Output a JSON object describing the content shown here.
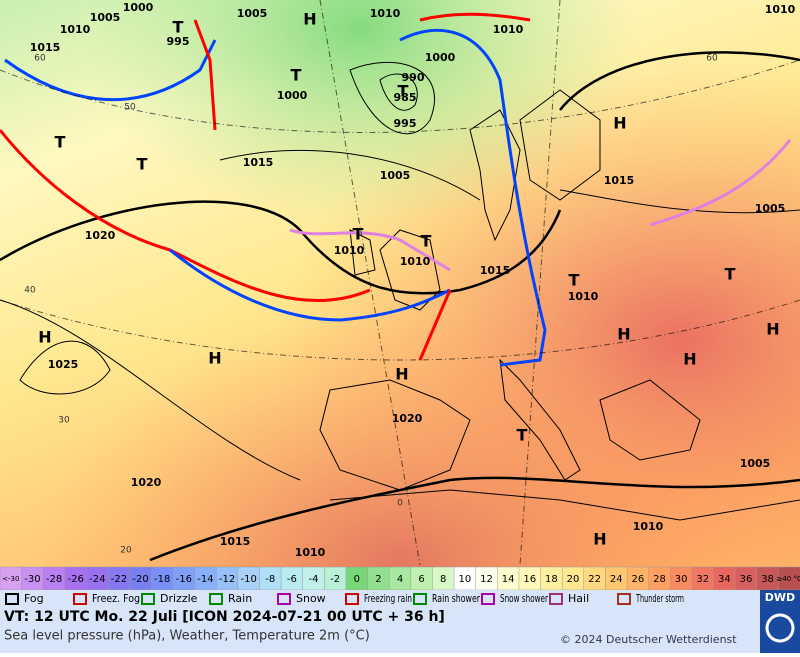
{
  "map": {
    "pressure_labels": [
      "1005",
      "1000",
      "1010",
      "1015",
      "995",
      "1005",
      "1010",
      "1010",
      "1000",
      "990",
      "985",
      "995",
      "1000",
      "1005",
      "1015",
      "1015",
      "1020",
      "1010",
      "1010",
      "1015",
      "1010",
      "1005",
      "1025",
      "1020",
      "1020",
      "1015",
      "1010",
      "1010",
      "1005",
      "1010"
    ],
    "systems": [
      "H",
      "T",
      "T",
      "T",
      "H",
      "T",
      "T",
      "T",
      "T",
      "T",
      "T",
      "H",
      "H",
      "H",
      "H",
      "H",
      "T",
      "H",
      "H"
    ],
    "grid_labels": [
      "60",
      "50",
      "40",
      "30",
      "20",
      "0",
      "60"
    ]
  },
  "scale": {
    "items": [
      {
        "label": "<-30",
        "color": "#d8a0f0"
      },
      {
        "label": "-30",
        "color": "#c890f0"
      },
      {
        "label": "-28",
        "color": "#b880f0"
      },
      {
        "label": "-26",
        "color": "#a870f0"
      },
      {
        "label": "-24",
        "color": "#9870f0"
      },
      {
        "label": "-22",
        "color": "#8878f0"
      },
      {
        "label": "-20",
        "color": "#7880f0"
      },
      {
        "label": "-18",
        "color": "#7890f8"
      },
      {
        "label": "-16",
        "color": "#80a0f8"
      },
      {
        "label": "-14",
        "color": "#88b0f8"
      },
      {
        "label": "-12",
        "color": "#98c0f8"
      },
      {
        "label": "-10",
        "color": "#a8d0f8"
      },
      {
        "label": "-8",
        "color": "#b0e0f8"
      },
      {
        "label": "-6",
        "color": "#b8ecf0"
      },
      {
        "label": "-4",
        "color": "#c0f0e8"
      },
      {
        "label": "-2",
        "color": "#b8f0d8"
      },
      {
        "label": "0",
        "color": "#78d878"
      },
      {
        "label": "2",
        "color": "#90e090"
      },
      {
        "label": "4",
        "color": "#a8e8a0"
      },
      {
        "label": "6",
        "color": "#c0f0b0"
      },
      {
        "label": "8",
        "color": "#d8f8c8"
      },
      {
        "label": "10",
        "color": "#ffffff"
      },
      {
        "label": "12",
        "color": "#fffff0"
      },
      {
        "label": "14",
        "color": "#fffcd0"
      },
      {
        "label": "16",
        "color": "#fff8b8"
      },
      {
        "label": "18",
        "color": "#fff0a0"
      },
      {
        "label": "20",
        "color": "#ffe890"
      },
      {
        "label": "22",
        "color": "#ffd880"
      },
      {
        "label": "24",
        "color": "#ffc870"
      },
      {
        "label": "26",
        "color": "#ffb468"
      },
      {
        "label": "28",
        "color": "#ffa060"
      },
      {
        "label": "30",
        "color": "#f88c60"
      },
      {
        "label": "32",
        "color": "#f07860"
      },
      {
        "label": "34",
        "color": "#e86860"
      },
      {
        "label": "36",
        "color": "#d86060"
      },
      {
        "label": "38",
        "color": "#c85858"
      },
      {
        "label": "≥40 °C",
        "color": "#b85050"
      }
    ]
  },
  "legend": [
    "Fog",
    "Freez. Fog",
    "Drizzle",
    "Rain",
    "Snow",
    "Freezing rain",
    "Rain shower",
    "Snow shower",
    "Hail",
    "Thunder storm"
  ],
  "footer": {
    "valid": "VT: 12 UTC Mo.  22 Juli [ICON 2024-07-21  00 UTC + 36 h]",
    "description": "Sea level pressure (hPa), Weather, Temperature 2m (°C)",
    "copyright": "© 2024 Deutscher Wetterdienst",
    "logo": "DWD"
  }
}
